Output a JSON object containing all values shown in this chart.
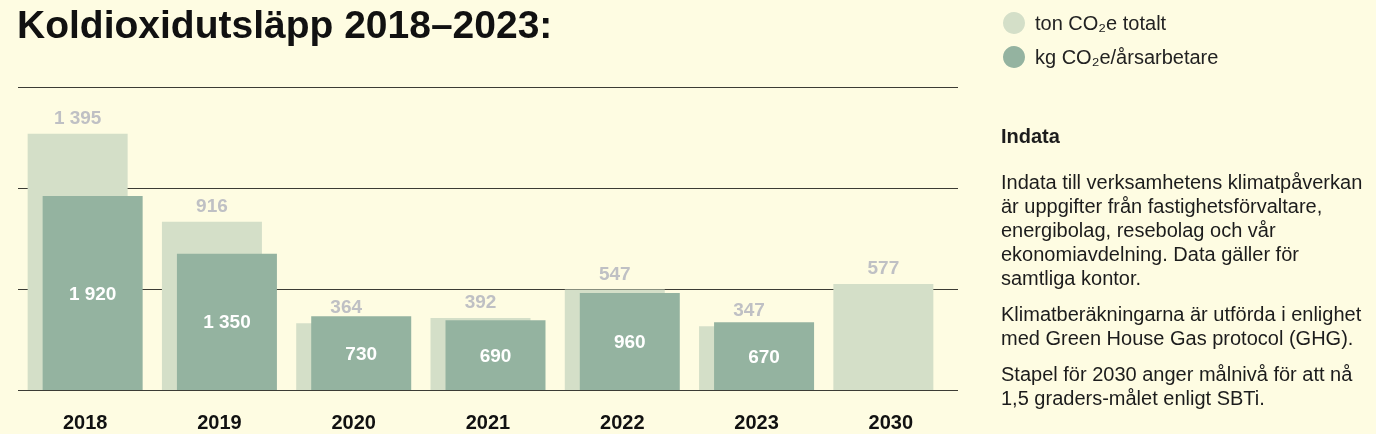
{
  "chart_data": {
    "type": "bar",
    "title": "Koldioxidutsläpp 2018–2023:",
    "categories": [
      "2018",
      "2019",
      "2020",
      "2021",
      "2022",
      "2023",
      "2030"
    ],
    "series": [
      {
        "name": "ton CO₂e totalt",
        "color": "#d4dfc8",
        "values": [
          1395,
          916,
          364,
          392,
          547,
          347,
          577
        ],
        "value_labels": [
          "1 395",
          "916",
          "364",
          "392",
          "547",
          "347",
          "577"
        ]
      },
      {
        "name": "kg CO₂e/årsarbetare",
        "color": "#94b3a0",
        "axis": "y2",
        "values": [
          1920,
          1350,
          730,
          690,
          960,
          670,
          null
        ],
        "value_labels": [
          "1 920",
          "1 350",
          "730",
          "690",
          "960",
          "670",
          null
        ]
      }
    ],
    "ylim": [
      0,
      1650
    ],
    "yticks": [
      {
        "value": 0,
        "label": null
      },
      {
        "value": 550,
        "label": null
      },
      {
        "value": 1100,
        "label": null
      },
      {
        "value": 1650,
        "label": null
      }
    ],
    "y2lim": [
      0,
      3000
    ],
    "grid": "y",
    "legend": "top right",
    "tick_labels": "x",
    "annotations": [
      "Indata",
      "Indata till verksamhetens klimatpåverkan är uppgifter från fastighetsförvaltare, energibolag, resebolag och vår ekonomiavdelning. Data gäller för samtliga kontor.",
      "Klimatberäkningarna är utförda i enlighet med Green House Gas protocol (GHG).",
      "Stapel för 2030 anger målnivå för att nå 1,5 graders-målet enligt SBTi."
    ]
  }
}
